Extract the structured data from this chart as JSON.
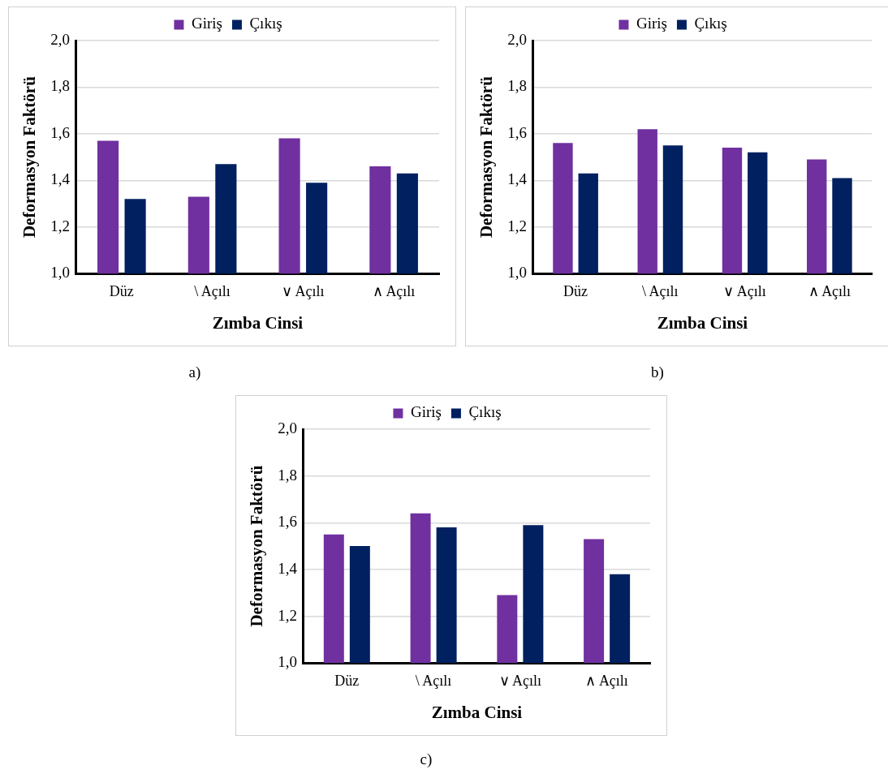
{
  "chart_data": [
    {
      "type": "bar",
      "categories": [
        "Düz",
        "\\ Açılı",
        "∨ Açılı",
        "∧ Açılı"
      ],
      "xlabel": "Zımba Cinsi",
      "ylabel": "Deformasyon Faktörü",
      "series": [
        {
          "name": "Giriş",
          "color": "#7030a0",
          "values": [
            1.57,
            1.33,
            1.58,
            1.46
          ]
        },
        {
          "name": "Çıkış",
          "color": "#002060",
          "values": [
            1.32,
            1.47,
            1.39,
            1.43
          ]
        }
      ],
      "ylim": [
        1.0,
        2.0
      ],
      "yticks": [
        {
          "value": 1.0,
          "label": "1,0"
        },
        {
          "value": 1.2,
          "label": "1,2"
        },
        {
          "value": 1.4,
          "label": "1,4"
        },
        {
          "value": 1.6,
          "label": "1,6"
        },
        {
          "value": 1.8,
          "label": "1,8"
        },
        {
          "value": 2.0,
          "label": "2,0"
        }
      ],
      "grid": "y",
      "legend": "top",
      "annotations": [
        "a)"
      ]
    },
    {
      "type": "bar",
      "categories": [
        "Düz",
        "\\ Açılı",
        "∨ Açılı",
        "∧ Açılı"
      ],
      "xlabel": "Zımba Cinsi",
      "ylabel": "Deformasyon Faktörü",
      "series": [
        {
          "name": "Giriş",
          "color": "#7030a0",
          "values": [
            1.56,
            1.62,
            1.54,
            1.49
          ]
        },
        {
          "name": "Çıkış",
          "color": "#002060",
          "values": [
            1.43,
            1.55,
            1.52,
            1.41
          ]
        }
      ],
      "ylim": [
        1.0,
        2.0
      ],
      "yticks": [
        {
          "value": 1.0,
          "label": "1,0"
        },
        {
          "value": 1.2,
          "label": "1,2"
        },
        {
          "value": 1.4,
          "label": "1,4"
        },
        {
          "value": 1.6,
          "label": "1,6"
        },
        {
          "value": 1.8,
          "label": "1,8"
        },
        {
          "value": 2.0,
          "label": "2,0"
        }
      ],
      "grid": "y",
      "legend": "top",
      "annotations": [
        "b)"
      ]
    },
    {
      "type": "bar",
      "categories": [
        "Düz",
        "\\ Açılı",
        "∨ Açılı",
        "∧ Açılı"
      ],
      "xlabel": "Zımba Cinsi",
      "ylabel": "Deformasyon Faktörü",
      "series": [
        {
          "name": "Giriş",
          "color": "#7030a0",
          "values": [
            1.55,
            1.64,
            1.29,
            1.53
          ]
        },
        {
          "name": "Çıkış",
          "color": "#002060",
          "values": [
            1.5,
            1.58,
            1.59,
            1.38
          ]
        }
      ],
      "ylim": [
        1.0,
        2.0
      ],
      "yticks": [
        {
          "value": 1.0,
          "label": "1,0"
        },
        {
          "value": 1.2,
          "label": "1,2"
        },
        {
          "value": 1.4,
          "label": "1,4"
        },
        {
          "value": 1.6,
          "label": "1,6"
        },
        {
          "value": 1.8,
          "label": "1,8"
        },
        {
          "value": 2.0,
          "label": "2,0"
        }
      ],
      "grid": "y",
      "legend": "top",
      "annotations": [
        "c)"
      ]
    }
  ]
}
